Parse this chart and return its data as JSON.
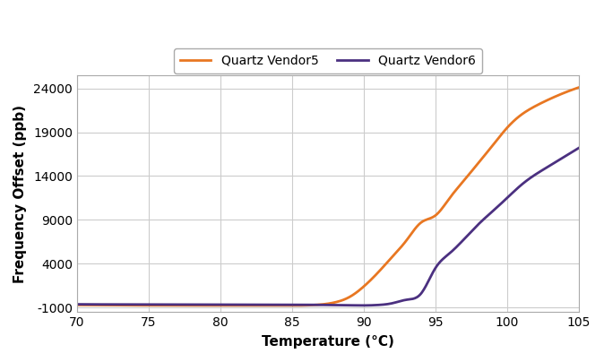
{
  "title": "",
  "xlabel": "Temperature (°C)",
  "ylabel": "Frequency Offset (ppb)",
  "xlim": [
    70,
    105
  ],
  "ylim": [
    -1500,
    25500
  ],
  "yticks": [
    -1000,
    4000,
    9000,
    14000,
    19000,
    24000
  ],
  "xticks": [
    70,
    75,
    80,
    85,
    90,
    95,
    100,
    105
  ],
  "vendor5_color": "#E87722",
  "vendor6_color": "#4B3080",
  "legend_labels": [
    "Quartz Vendor5",
    "Quartz Vendor6"
  ],
  "background_color": "#ffffff",
  "grid_color": "#cccccc",
  "vendor5_x": [
    70,
    71,
    72,
    73,
    74,
    75,
    76,
    77,
    78,
    79,
    80,
    81,
    82,
    83,
    84,
    85,
    86,
    87,
    88,
    89,
    90,
    91,
    92,
    93,
    94,
    95,
    96,
    97,
    98,
    99,
    100,
    101,
    102,
    103,
    104,
    105
  ],
  "vendor5_y": [
    -700,
    -710,
    -720,
    -730,
    -735,
    -740,
    -742,
    -745,
    -748,
    -750,
    -752,
    -754,
    -756,
    -758,
    -760,
    -762,
    -740,
    -650,
    -400,
    200,
    1400,
    3000,
    4800,
    6700,
    8700,
    9500,
    11500,
    13500,
    15500,
    17500,
    19500,
    21000,
    22000,
    22800,
    23500,
    24100
  ],
  "vendor6_x": [
    70,
    71,
    72,
    73,
    74,
    75,
    76,
    77,
    78,
    79,
    80,
    81,
    82,
    83,
    84,
    85,
    86,
    87,
    88,
    89,
    90,
    91,
    92,
    93,
    94,
    95,
    96,
    97,
    98,
    99,
    100,
    101,
    102,
    103,
    104,
    105
  ],
  "vendor6_y": [
    -620,
    -630,
    -635,
    -640,
    -645,
    -648,
    -650,
    -652,
    -655,
    -657,
    -659,
    -661,
    -663,
    -665,
    -667,
    -669,
    -675,
    -690,
    -710,
    -730,
    -750,
    -700,
    -500,
    -100,
    600,
    3500,
    5200,
    6800,
    8500,
    10000,
    11500,
    13000,
    14200,
    15200,
    16200,
    17200
  ]
}
